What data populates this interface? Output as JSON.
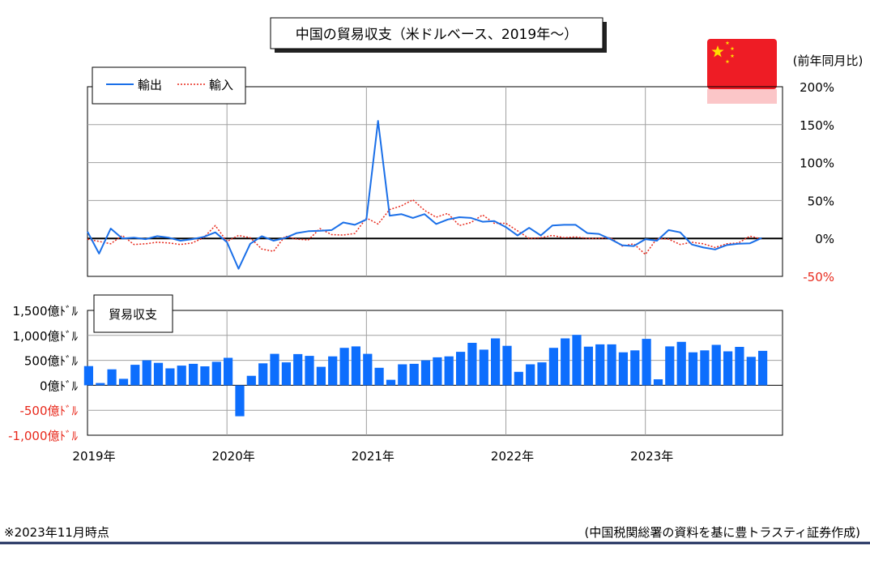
{
  "title": "中国の貿易収支（米ドルベース、2019年～）",
  "flag_colors": {
    "red": "#ee1c25",
    "star": "#ffde00"
  },
  "footnote_left": "※2023年11月時点",
  "footnote_right": "(中国税関総署の資料を基に豊トラスティ証券作成)",
  "chart_data": [
    {
      "type": "line",
      "y_unit_label": "(前年同月比)",
      "ylim": [
        -50,
        200
      ],
      "y_ticks": [
        {
          "value": 200,
          "label": "200%"
        },
        {
          "value": 150,
          "label": "150%"
        },
        {
          "value": 100,
          "label": "100%"
        },
        {
          "value": 50,
          "label": "50%"
        },
        {
          "value": 0,
          "label": "0%"
        },
        {
          "value": -50,
          "label": "-50%"
        }
      ],
      "grid": true,
      "legend_position": "top-left",
      "x_start": "2019-01",
      "x_end": "2023-11",
      "series": [
        {
          "name": "輸出",
          "color": "#1a6fe8",
          "style": "solid",
          "values": [
            9,
            -20,
            13,
            0,
            1,
            -1,
            3,
            1,
            -3,
            -1,
            2,
            8,
            -5,
            -40,
            -7,
            3,
            -3,
            0.5,
            7,
            9.5,
            10,
            11,
            21,
            18,
            25,
            155,
            30,
            32,
            27,
            32,
            19,
            25,
            28,
            27,
            22,
            23,
            15,
            4,
            14,
            4,
            17,
            18,
            18,
            7,
            6,
            -1,
            -9,
            -10,
            -1,
            -3,
            11,
            8,
            -8,
            -12,
            -14.5,
            -8.8,
            -7,
            -6.4,
            0.5
          ]
        },
        {
          "name": "輸入",
          "color": "#e8291c",
          "style": "dotted",
          "values": [
            -1,
            -4,
            -7,
            4,
            -8,
            -7,
            -5,
            -6,
            -8,
            -6,
            1,
            17,
            -4,
            4,
            1,
            -14,
            -17,
            3,
            -1,
            -2,
            13,
            5,
            4.5,
            6.5,
            27,
            19,
            38,
            43,
            51,
            37,
            28,
            33,
            17,
            21,
            31,
            20,
            20,
            10,
            0,
            1,
            4,
            1,
            2,
            0,
            0,
            1,
            -10,
            -7,
            -21,
            0,
            -1,
            -8,
            -5,
            -7,
            -12,
            -7,
            -6,
            3,
            -0.6
          ]
        }
      ]
    },
    {
      "type": "bar",
      "panel_label": "貿易収支",
      "ylim": [
        -1000,
        1500
      ],
      "y_ticks": [
        {
          "value": 1500,
          "label": "1,500億ﾄﾞﾙ"
        },
        {
          "value": 1000,
          "label": "1,000億ﾄﾞﾙ"
        },
        {
          "value": 500,
          "label": "500億ﾄﾞﾙ"
        },
        {
          "value": 0,
          "label": "0億ﾄﾞﾙ"
        },
        {
          "value": -500,
          "label": "-500億ﾄﾞﾙ"
        },
        {
          "value": -1000,
          "label": "-1,000億ﾄﾞﾙ"
        }
      ],
      "x_ticks": [
        "2019年",
        "2020年",
        "2021年",
        "2022年",
        "2023年"
      ],
      "bar_color": "#0d6efd",
      "values": [
        385,
        45,
        320,
        130,
        410,
        500,
        450,
        340,
        395,
        430,
        380,
        470,
        550,
        -620,
        190,
        440,
        630,
        460,
        625,
        590,
        370,
        580,
        750,
        780,
        630,
        350,
        110,
        420,
        430,
        500,
        560,
        580,
        670,
        850,
        715,
        940,
        790,
        270,
        420,
        460,
        750,
        940,
        1010,
        775,
        820,
        820,
        660,
        700,
        930,
        120,
        780,
        870,
        660,
        700,
        810,
        680,
        770,
        570,
        690
      ]
    }
  ]
}
